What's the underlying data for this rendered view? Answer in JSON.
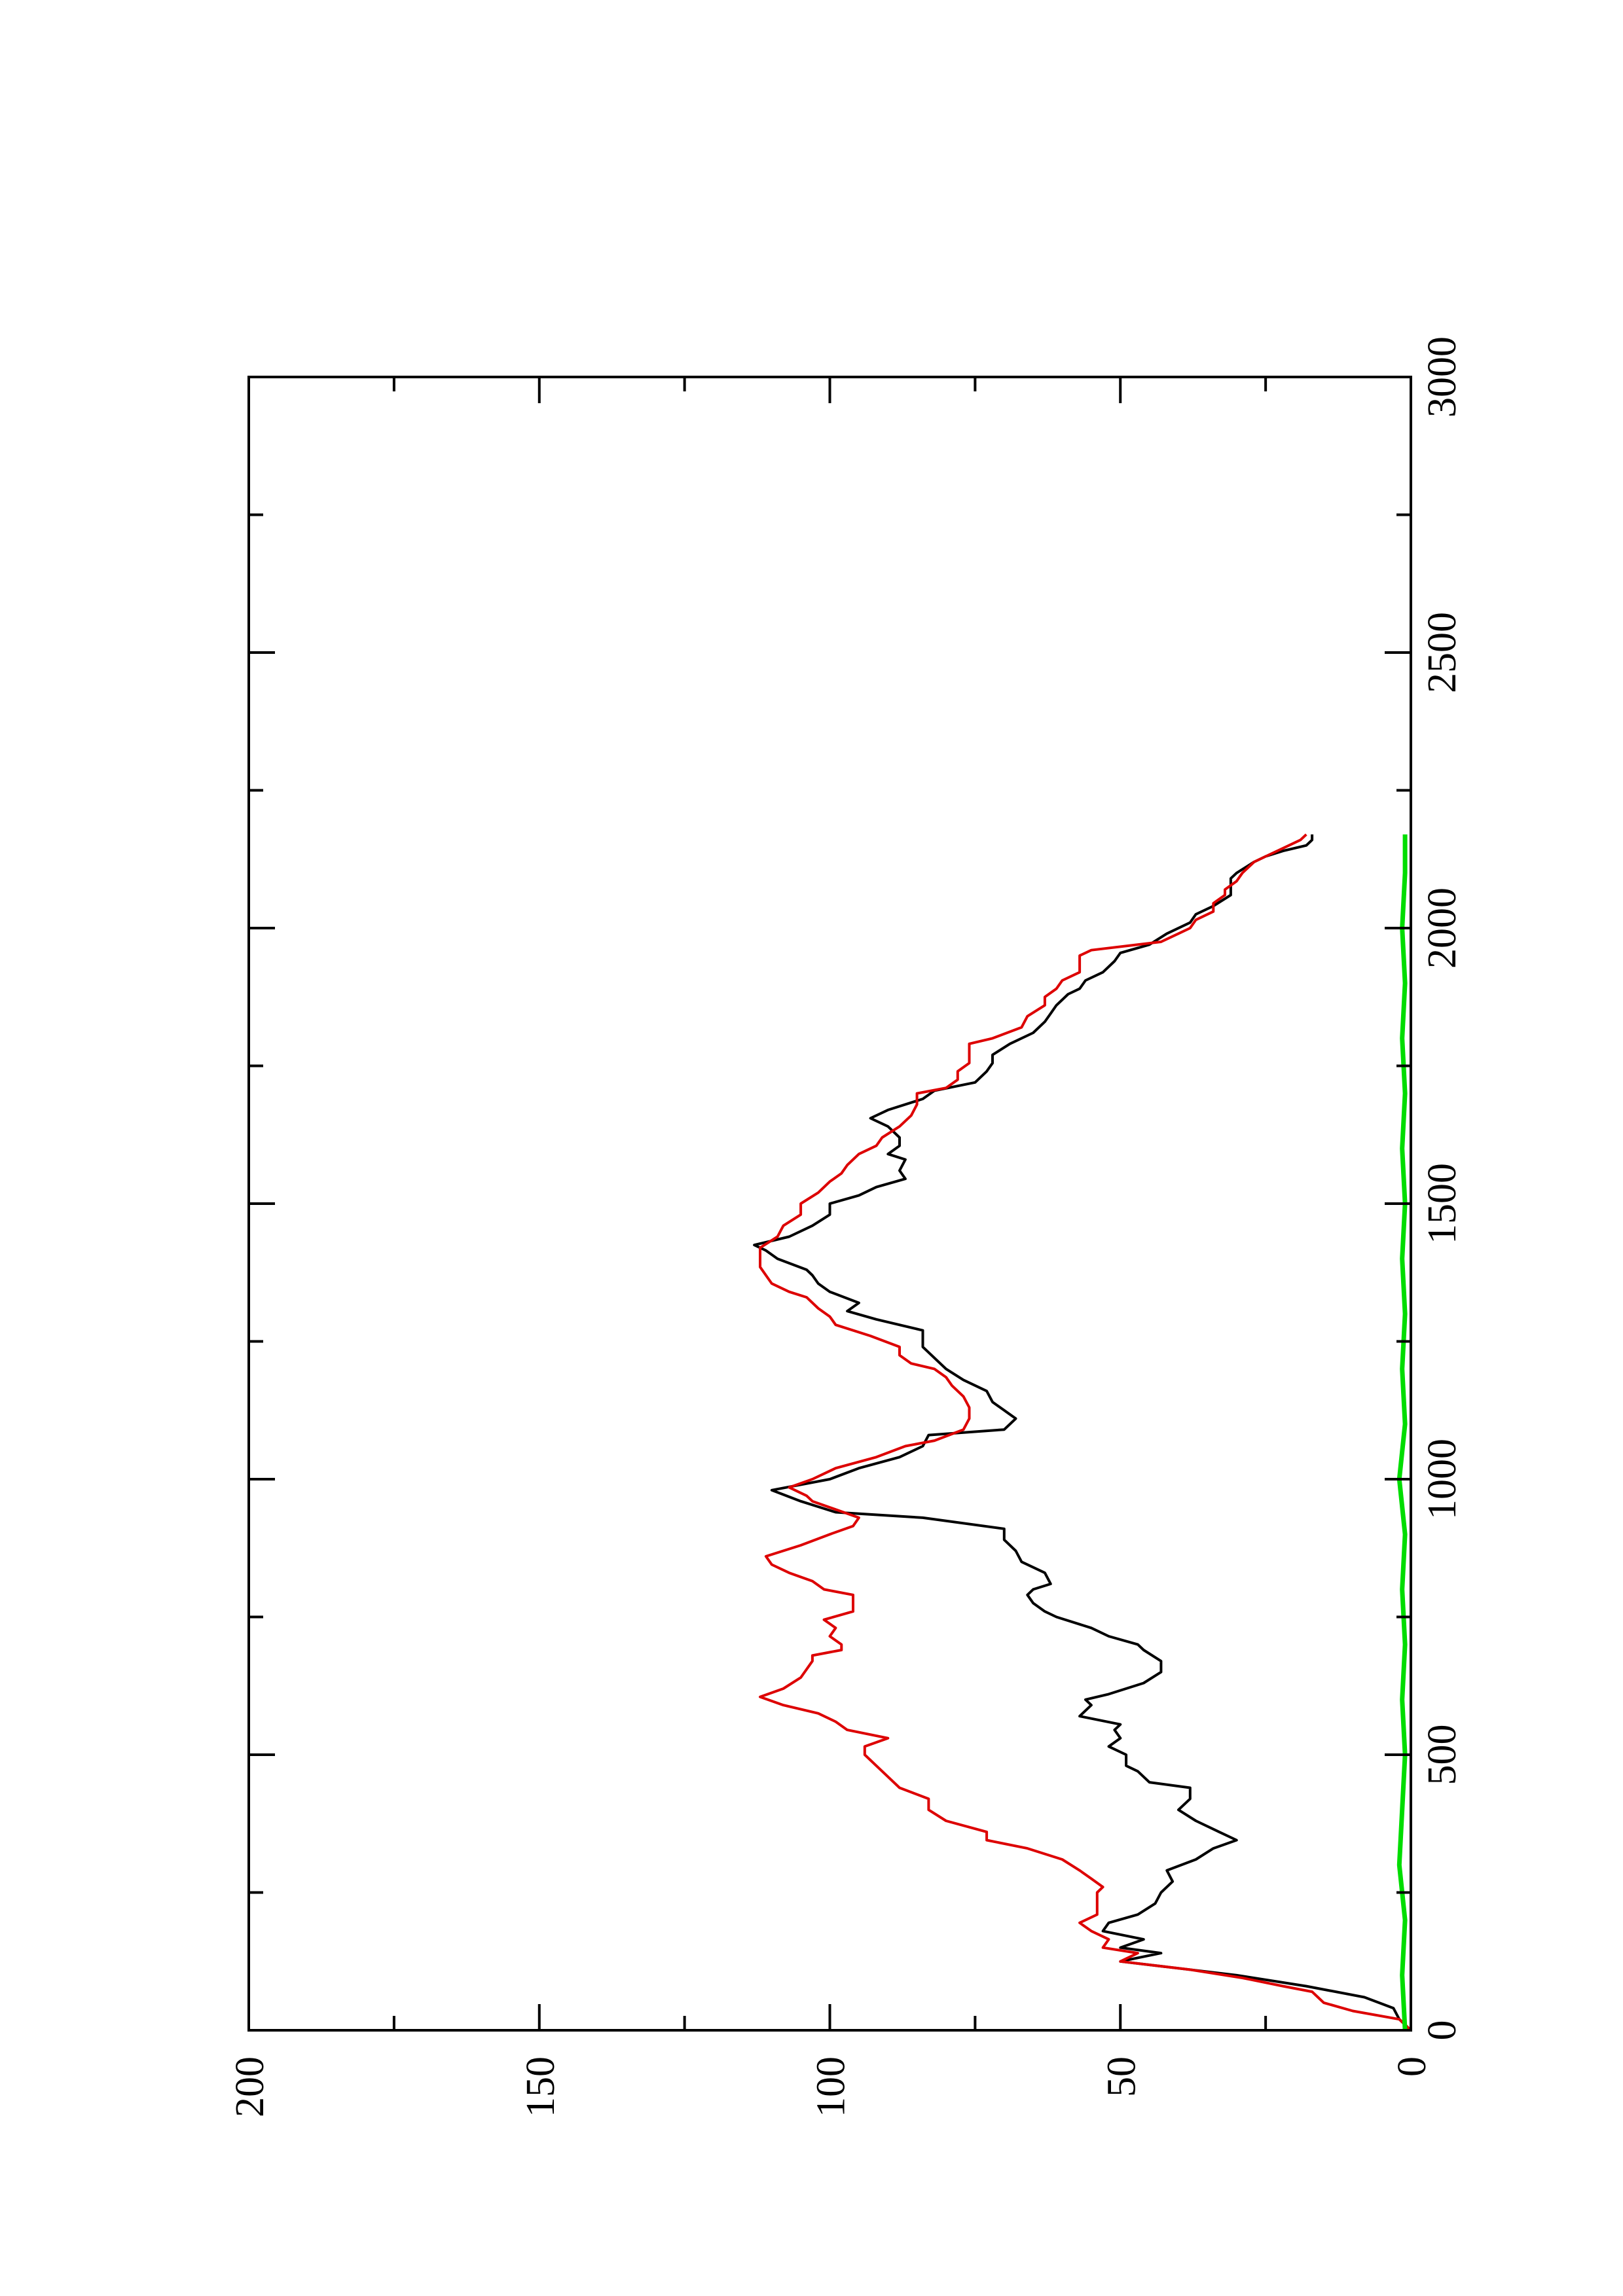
{
  "chart_data": {
    "type": "line",
    "orientation": "rotated 90 degrees counter-clockwise (page is landscape plot printed in portrait)",
    "title": "",
    "xlabel": "",
    "ylabel": "",
    "xlim": [
      0,
      3000
    ],
    "ylim": [
      0,
      200
    ],
    "x_ticks": [
      "0",
      "500",
      "1000",
      "1500",
      "2000",
      "2500",
      "3000"
    ],
    "y_ticks": [
      "0",
      "50",
      "100",
      "150",
      "200"
    ],
    "grid": false,
    "legend": "none",
    "series": [
      {
        "color": "#000000",
        "points": [
          [
            0,
            0
          ],
          [
            20,
            2
          ],
          [
            40,
            3
          ],
          [
            60,
            8
          ],
          [
            80,
            18
          ],
          [
            100,
            30
          ],
          [
            115,
            42
          ],
          [
            125,
            50
          ],
          [
            140,
            43
          ],
          [
            150,
            50
          ],
          [
            165,
            46
          ],
          [
            180,
            53
          ],
          [
            195,
            52
          ],
          [
            210,
            47
          ],
          [
            230,
            44
          ],
          [
            250,
            43
          ],
          [
            270,
            41
          ],
          [
            290,
            42
          ],
          [
            310,
            37
          ],
          [
            330,
            34
          ],
          [
            345,
            30
          ],
          [
            360,
            33
          ],
          [
            380,
            37
          ],
          [
            400,
            40
          ],
          [
            420,
            38
          ],
          [
            440,
            38
          ],
          [
            450,
            45
          ],
          [
            470,
            47
          ],
          [
            480,
            49
          ],
          [
            500,
            49
          ],
          [
            515,
            52
          ],
          [
            530,
            50
          ],
          [
            545,
            51
          ],
          [
            555,
            50
          ],
          [
            570,
            57
          ],
          [
            590,
            55
          ],
          [
            600,
            56
          ],
          [
            610,
            52
          ],
          [
            630,
            46
          ],
          [
            650,
            43
          ],
          [
            670,
            43
          ],
          [
            690,
            46
          ],
          [
            700,
            47
          ],
          [
            715,
            52
          ],
          [
            730,
            55
          ],
          [
            750,
            61
          ],
          [
            760,
            63
          ],
          [
            775,
            65
          ],
          [
            790,
            66
          ],
          [
            800,
            65
          ],
          [
            810,
            62
          ],
          [
            830,
            63
          ],
          [
            850,
            67
          ],
          [
            870,
            68
          ],
          [
            890,
            70
          ],
          [
            910,
            70
          ],
          [
            930,
            84
          ],
          [
            940,
            99
          ],
          [
            960,
            105
          ],
          [
            980,
            110
          ],
          [
            1000,
            100
          ],
          [
            1020,
            95
          ],
          [
            1040,
            88
          ],
          [
            1060,
            84
          ],
          [
            1080,
            83
          ],
          [
            1090,
            70
          ],
          [
            1110,
            68
          ],
          [
            1125,
            70
          ],
          [
            1140,
            72
          ],
          [
            1160,
            73
          ],
          [
            1180,
            77
          ],
          [
            1200,
            80
          ],
          [
            1220,
            82
          ],
          [
            1240,
            84
          ],
          [
            1260,
            84
          ],
          [
            1270,
            84
          ],
          [
            1290,
            92
          ],
          [
            1305,
            97
          ],
          [
            1320,
            95
          ],
          [
            1340,
            100
          ],
          [
            1355,
            102
          ],
          [
            1370,
            103
          ],
          [
            1380,
            104
          ],
          [
            1400,
            109
          ],
          [
            1415,
            111
          ],
          [
            1425,
            113
          ],
          [
            1440,
            107
          ],
          [
            1460,
            103
          ],
          [
            1480,
            100
          ],
          [
            1500,
            100
          ],
          [
            1515,
            95
          ],
          [
            1530,
            92
          ],
          [
            1545,
            87
          ],
          [
            1560,
            88
          ],
          [
            1580,
            87
          ],
          [
            1590,
            90
          ],
          [
            1605,
            88
          ],
          [
            1620,
            88
          ],
          [
            1640,
            90
          ],
          [
            1655,
            93
          ],
          [
            1670,
            90
          ],
          [
            1690,
            84
          ],
          [
            1705,
            82
          ],
          [
            1720,
            75
          ],
          [
            1740,
            73
          ],
          [
            1755,
            72
          ],
          [
            1770,
            72
          ],
          [
            1790,
            69
          ],
          [
            1810,
            65
          ],
          [
            1830,
            63
          ],
          [
            1845,
            62
          ],
          [
            1860,
            61
          ],
          [
            1870,
            60
          ],
          [
            1880,
            59
          ],
          [
            1890,
            57
          ],
          [
            1905,
            56
          ],
          [
            1920,
            53
          ],
          [
            1940,
            51
          ],
          [
            1955,
            50
          ],
          [
            1970,
            45
          ],
          [
            1990,
            42
          ],
          [
            2010,
            38
          ],
          [
            2025,
            37
          ],
          [
            2040,
            34
          ],
          [
            2060,
            31
          ],
          [
            2070,
            31
          ],
          [
            2090,
            31
          ],
          [
            2100,
            30
          ],
          [
            2120,
            27
          ],
          [
            2130,
            25
          ],
          [
            2140,
            22
          ],
          [
            2150,
            18
          ],
          [
            2160,
            17
          ],
          [
            2170,
            17
          ]
        ]
      },
      {
        "color": "#dd0000",
        "points": [
          [
            0,
            0
          ],
          [
            20,
            2
          ],
          [
            35,
            10
          ],
          [
            50,
            15
          ],
          [
            60,
            16
          ],
          [
            70,
            17
          ],
          [
            80,
            22
          ],
          [
            95,
            29
          ],
          [
            110,
            38
          ],
          [
            125,
            50
          ],
          [
            140,
            47
          ],
          [
            150,
            53
          ],
          [
            165,
            52
          ],
          [
            180,
            55
          ],
          [
            195,
            57
          ],
          [
            210,
            54
          ],
          [
            230,
            54
          ],
          [
            250,
            54
          ],
          [
            260,
            53
          ],
          [
            275,
            55
          ],
          [
            290,
            57
          ],
          [
            310,
            60
          ],
          [
            330,
            66
          ],
          [
            345,
            73
          ],
          [
            360,
            73
          ],
          [
            380,
            80
          ],
          [
            400,
            83
          ],
          [
            420,
            83
          ],
          [
            440,
            88
          ],
          [
            460,
            90
          ],
          [
            480,
            92
          ],
          [
            500,
            94
          ],
          [
            515,
            94
          ],
          [
            530,
            90
          ],
          [
            545,
            97
          ],
          [
            560,
            99
          ],
          [
            575,
            102
          ],
          [
            590,
            108
          ],
          [
            605,
            112
          ],
          [
            620,
            108
          ],
          [
            640,
            105
          ],
          [
            655,
            104
          ],
          [
            670,
            103
          ],
          [
            680,
            103
          ],
          [
            690,
            98
          ],
          [
            700,
            98
          ],
          [
            715,
            100
          ],
          [
            730,
            99
          ],
          [
            745,
            101
          ],
          [
            760,
            96
          ],
          [
            770,
            96
          ],
          [
            790,
            96
          ],
          [
            800,
            101
          ],
          [
            815,
            103
          ],
          [
            830,
            107
          ],
          [
            845,
            110
          ],
          [
            860,
            111
          ],
          [
            880,
            105
          ],
          [
            900,
            100
          ],
          [
            915,
            96
          ],
          [
            930,
            95
          ],
          [
            945,
            99
          ],
          [
            960,
            103
          ],
          [
            970,
            104
          ],
          [
            985,
            107
          ],
          [
            1000,
            103
          ],
          [
            1020,
            99
          ],
          [
            1040,
            92
          ],
          [
            1060,
            87
          ],
          [
            1070,
            82
          ],
          [
            1090,
            77
          ],
          [
            1110,
            76
          ],
          [
            1130,
            76
          ],
          [
            1150,
            77
          ],
          [
            1170,
            79
          ],
          [
            1185,
            80
          ],
          [
            1200,
            82
          ],
          [
            1210,
            86
          ],
          [
            1225,
            88
          ],
          [
            1240,
            88
          ],
          [
            1260,
            93
          ],
          [
            1280,
            99
          ],
          [
            1295,
            100
          ],
          [
            1310,
            102
          ],
          [
            1330,
            104
          ],
          [
            1340,
            107
          ],
          [
            1355,
            110
          ],
          [
            1370,
            111
          ],
          [
            1385,
            112
          ],
          [
            1400,
            112
          ],
          [
            1420,
            112
          ],
          [
            1440,
            109
          ],
          [
            1460,
            108
          ],
          [
            1480,
            105
          ],
          [
            1500,
            105
          ],
          [
            1520,
            102
          ],
          [
            1540,
            100
          ],
          [
            1555,
            98
          ],
          [
            1570,
            97
          ],
          [
            1590,
            95
          ],
          [
            1605,
            92
          ],
          [
            1620,
            91
          ],
          [
            1640,
            88
          ],
          [
            1660,
            86
          ],
          [
            1680,
            85
          ],
          [
            1700,
            85
          ],
          [
            1710,
            80
          ],
          [
            1725,
            78
          ],
          [
            1740,
            78
          ],
          [
            1755,
            76
          ],
          [
            1770,
            76
          ],
          [
            1790,
            76
          ],
          [
            1800,
            72
          ],
          [
            1820,
            67
          ],
          [
            1840,
            66
          ],
          [
            1860,
            63
          ],
          [
            1875,
            63
          ],
          [
            1890,
            61
          ],
          [
            1905,
            60
          ],
          [
            1920,
            57
          ],
          [
            1935,
            57
          ],
          [
            1950,
            57
          ],
          [
            1960,
            55
          ],
          [
            1975,
            43
          ],
          [
            1990,
            40
          ],
          [
            2000,
            38
          ],
          [
            2015,
            37
          ],
          [
            2030,
            34
          ],
          [
            2045,
            34
          ],
          [
            2060,
            32
          ],
          [
            2070,
            32
          ],
          [
            2085,
            30
          ],
          [
            2100,
            29
          ],
          [
            2120,
            27
          ],
          [
            2130,
            25
          ],
          [
            2145,
            22
          ],
          [
            2160,
            19
          ],
          [
            2170,
            18
          ]
        ]
      },
      {
        "color": "#00dd00",
        "points": [
          [
            0,
            1
          ],
          [
            100,
            1.5
          ],
          [
            200,
            1
          ],
          [
            300,
            2
          ],
          [
            400,
            1.5
          ],
          [
            500,
            1
          ],
          [
            600,
            1.5
          ],
          [
            700,
            1
          ],
          [
            800,
            1.5
          ],
          [
            900,
            1
          ],
          [
            1000,
            2
          ],
          [
            1100,
            1
          ],
          [
            1200,
            1.5
          ],
          [
            1300,
            1
          ],
          [
            1400,
            1.5
          ],
          [
            1500,
            1
          ],
          [
            1600,
            1.5
          ],
          [
            1700,
            1
          ],
          [
            1800,
            1.5
          ],
          [
            1900,
            1
          ],
          [
            2000,
            1.5
          ],
          [
            2100,
            1
          ],
          [
            2170,
            1
          ]
        ]
      }
    ]
  }
}
